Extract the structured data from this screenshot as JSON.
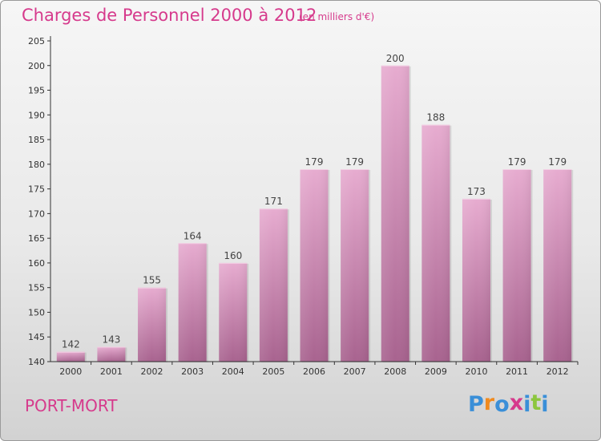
{
  "header": {
    "title": "Charges de Personnel 2000 à 2012",
    "subtitle": "(en milliers d'€)"
  },
  "footer": {
    "commune": "PORT-MORT",
    "logo": {
      "text": "Proxiti",
      "colors": [
        "#3a8fd8",
        "#f08a1e",
        "#3a8fd8",
        "#d63a8c",
        "#3a8fd8",
        "#8cc63e",
        "#3a8fd8"
      ]
    }
  },
  "colors": {
    "title": "#d63a8c",
    "bar_top": "#e7acd0",
    "bar_bottom": "#a8638f",
    "axis": "#333333"
  },
  "chart_data": {
    "type": "bar",
    "categories": [
      "2000",
      "2001",
      "2002",
      "2003",
      "2004",
      "2005",
      "2006",
      "2007",
      "2008",
      "2009",
      "2010",
      "2011",
      "2012"
    ],
    "values": [
      142,
      143,
      155,
      164,
      160,
      171,
      179,
      179,
      200,
      188,
      173,
      179,
      179
    ],
    "ylim": [
      140,
      205
    ],
    "yticks": [
      140,
      145,
      150,
      155,
      160,
      165,
      170,
      175,
      180,
      185,
      190,
      195,
      200,
      205
    ],
    "grid": false
  }
}
